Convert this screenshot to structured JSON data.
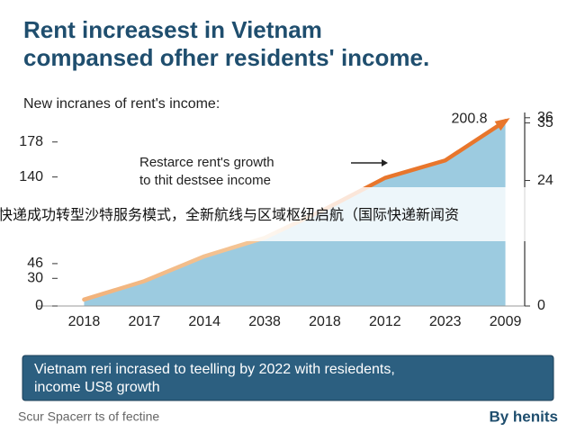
{
  "chart_data": {
    "type": "area",
    "title": [
      "Rent increasest in Vietnam",
      "compansed ofher residents' income."
    ],
    "subtitle": "New incranes of rent's income:",
    "annotation": [
      "Restarce rent's growth",
      "to thit destsee income"
    ],
    "banner": "快递成功转型沙特服务模式，全新航线与区域枢纽启航（国际快递新闻资",
    "caption": [
      "Vietnam reri incrased to teelling by 2022 with resiedents,",
      "income US8 growth"
    ],
    "source": "Scur Spacerr ts of fectine",
    "credit": "By henits",
    "categories": [
      "2018",
      "2017",
      "2014",
      "2038",
      "2018",
      "2012",
      "2023",
      "2009"
    ],
    "series": [
      {
        "color": "#e8762c",
        "values": [
          7,
          27,
          54,
          74,
          105,
          139,
          158,
          200.8
        ]
      }
    ],
    "area_color": "#9ccbe0",
    "ylim": [
      0,
      210
    ],
    "yticks": [
      0,
      30,
      46,
      140,
      178
    ],
    "y2lim": [
      0,
      37
    ],
    "y2ticks": [
      0,
      24,
      35,
      36
    ],
    "grid": false
  }
}
